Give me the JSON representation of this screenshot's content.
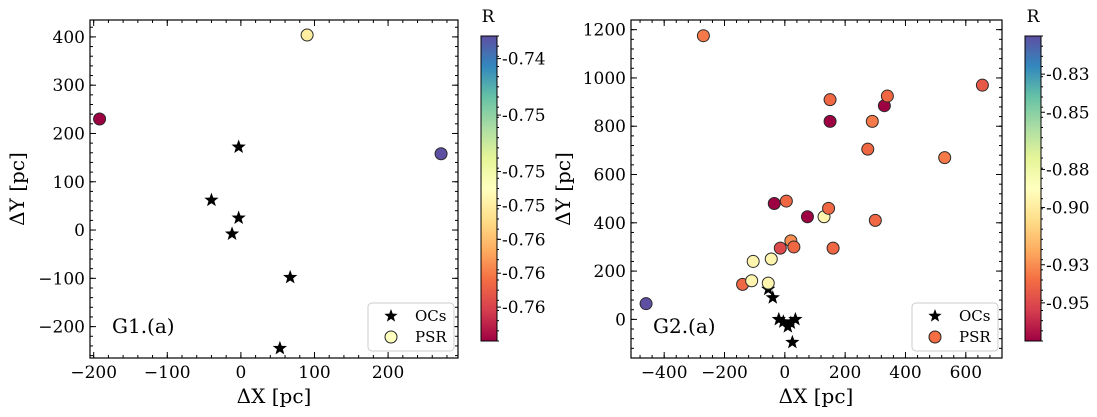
{
  "chart_data": [
    {
      "type": "scatter",
      "panel_label": "G1.(a)",
      "xlabel": "ΔX [pc]",
      "ylabel": "ΔY [pc]",
      "xlim": [
        -205,
        295
      ],
      "ylim": [
        -265,
        435
      ],
      "xticks": [
        -200,
        -100,
        0,
        100,
        200
      ],
      "xtick_labels": [
        "−200",
        "−100",
        "0",
        "100",
        "200"
      ],
      "yticks": [
        -200,
        -100,
        0,
        100,
        200,
        300,
        400
      ],
      "ytick_labels": [
        "−200",
        "−100",
        "0",
        "100",
        "200",
        "300",
        "400"
      ],
      "legend": {
        "placement": "lower-right",
        "entries": [
          "OCs",
          "PSR"
        ]
      },
      "colorbar": {
        "label": "R",
        "cmap": "Spectral",
        "range": [
          -0.765,
          -0.738
        ],
        "tick_values": [
          -0.74,
          -0.745,
          -0.75,
          -0.753,
          -0.756,
          -0.759,
          -0.762
        ],
        "tick_labels": [
          "-0.74",
          "-0.75",
          "-0.75",
          "-0.75",
          "-0.76",
          "-0.76",
          "-0.76"
        ]
      },
      "series": [
        {
          "name": "OCs",
          "marker": "star",
          "x": [
            -3,
            -40,
            -3,
            -12,
            67,
            53
          ],
          "y": [
            172,
            62,
            25,
            -8,
            -98,
            -245
          ]
        },
        {
          "name": "PSR",
          "marker": "circle",
          "x": [
            -192,
            90,
            272
          ],
          "y": [
            230,
            404,
            158
          ],
          "color_value": [
            -0.765,
            -0.753,
            -0.738
          ]
        }
      ]
    },
    {
      "type": "scatter",
      "panel_label": "G2.(a)",
      "xlabel": "ΔX [pc]",
      "ylabel": "ΔY [pc]",
      "xlim": [
        -510,
        720
      ],
      "ylim": [
        -160,
        1240
      ],
      "xticks": [
        -400,
        -200,
        0,
        200,
        400,
        600
      ],
      "xtick_labels": [
        "−400",
        "−200",
        "0",
        "200",
        "400",
        "600"
      ],
      "yticks": [
        0,
        200,
        400,
        600,
        800,
        1000,
        1200
      ],
      "ytick_labels": [
        "0",
        "200",
        "400",
        "600",
        "800",
        "1000",
        "1200"
      ],
      "legend": {
        "placement": "lower-right",
        "entries": [
          "OCs",
          "PSR"
        ]
      },
      "colorbar": {
        "label": "R",
        "cmap": "Spectral",
        "range": [
          -0.97,
          -0.81
        ],
        "tick_values": [
          -0.83,
          -0.85,
          -0.88,
          -0.9,
          -0.93,
          -0.95
        ],
        "tick_labels": [
          "-0.83",
          "-0.85",
          "-0.88",
          "-0.90",
          "-0.93",
          "-0.95"
        ]
      },
      "series": [
        {
          "name": "OCs",
          "marker": "star",
          "x": [
            -55,
            -40,
            -20,
            -5,
            10,
            20,
            35,
            25
          ],
          "y": [
            125,
            90,
            0,
            -10,
            -30,
            -15,
            0,
            -95
          ]
        },
        {
          "name": "PSR",
          "marker": "circle",
          "x": [
            -460,
            -270,
            -140,
            -110,
            -105,
            -55,
            -45,
            -35,
            -15,
            5,
            20,
            30,
            75,
            130,
            145,
            150,
            150,
            160,
            275,
            290,
            300,
            330,
            340,
            530,
            655
          ],
          "y": [
            65,
            1175,
            145,
            160,
            240,
            150,
            250,
            480,
            295,
            490,
            325,
            300,
            425,
            425,
            460,
            910,
            820,
            295,
            705,
            820,
            410,
            885,
            925,
            670,
            970
          ],
          "color_value": [
            -0.81,
            -0.935,
            -0.94,
            -0.895,
            -0.895,
            -0.895,
            -0.895,
            -0.97,
            -0.95,
            -0.94,
            -0.93,
            -0.94,
            -0.97,
            -0.895,
            -0.94,
            -0.94,
            -0.97,
            -0.94,
            -0.94,
            -0.935,
            -0.94,
            -0.97,
            -0.94,
            -0.935,
            -0.945
          ]
        }
      ]
    }
  ]
}
